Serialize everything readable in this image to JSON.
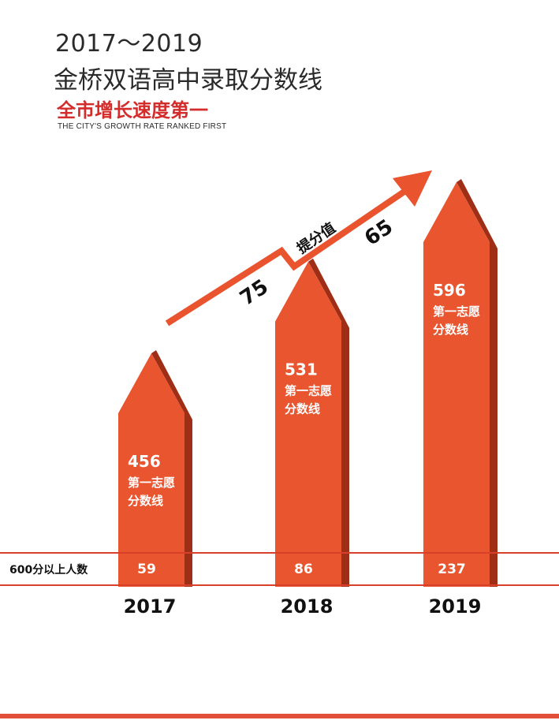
{
  "header": {
    "years": "2017～2019",
    "title": "金桥双语高中录取分数线",
    "subtitle_cn": "全市增长速度第一",
    "subtitle_en": "THE CITY'S GROWTH RATE RANKED FIRST"
  },
  "colors": {
    "bar": "#e8552f",
    "bar_shadow": "#9e2f16",
    "arrow": "#e9532e",
    "row_line": "#d8402a"
  },
  "chart_data": {
    "type": "bar",
    "categories": [
      "2017",
      "2018",
      "2019"
    ],
    "series": [
      {
        "name": "第一志愿分数线",
        "values": [
          456,
          531,
          596
        ]
      },
      {
        "name": "600分以上人数",
        "values": [
          59,
          86,
          237
        ]
      }
    ],
    "bar_caption_line1": "第一志愿",
    "bar_caption_line2": "分数线",
    "row_label": "600分以上人数",
    "arrow_label": "提分值",
    "increases": [
      "75",
      "65"
    ]
  }
}
